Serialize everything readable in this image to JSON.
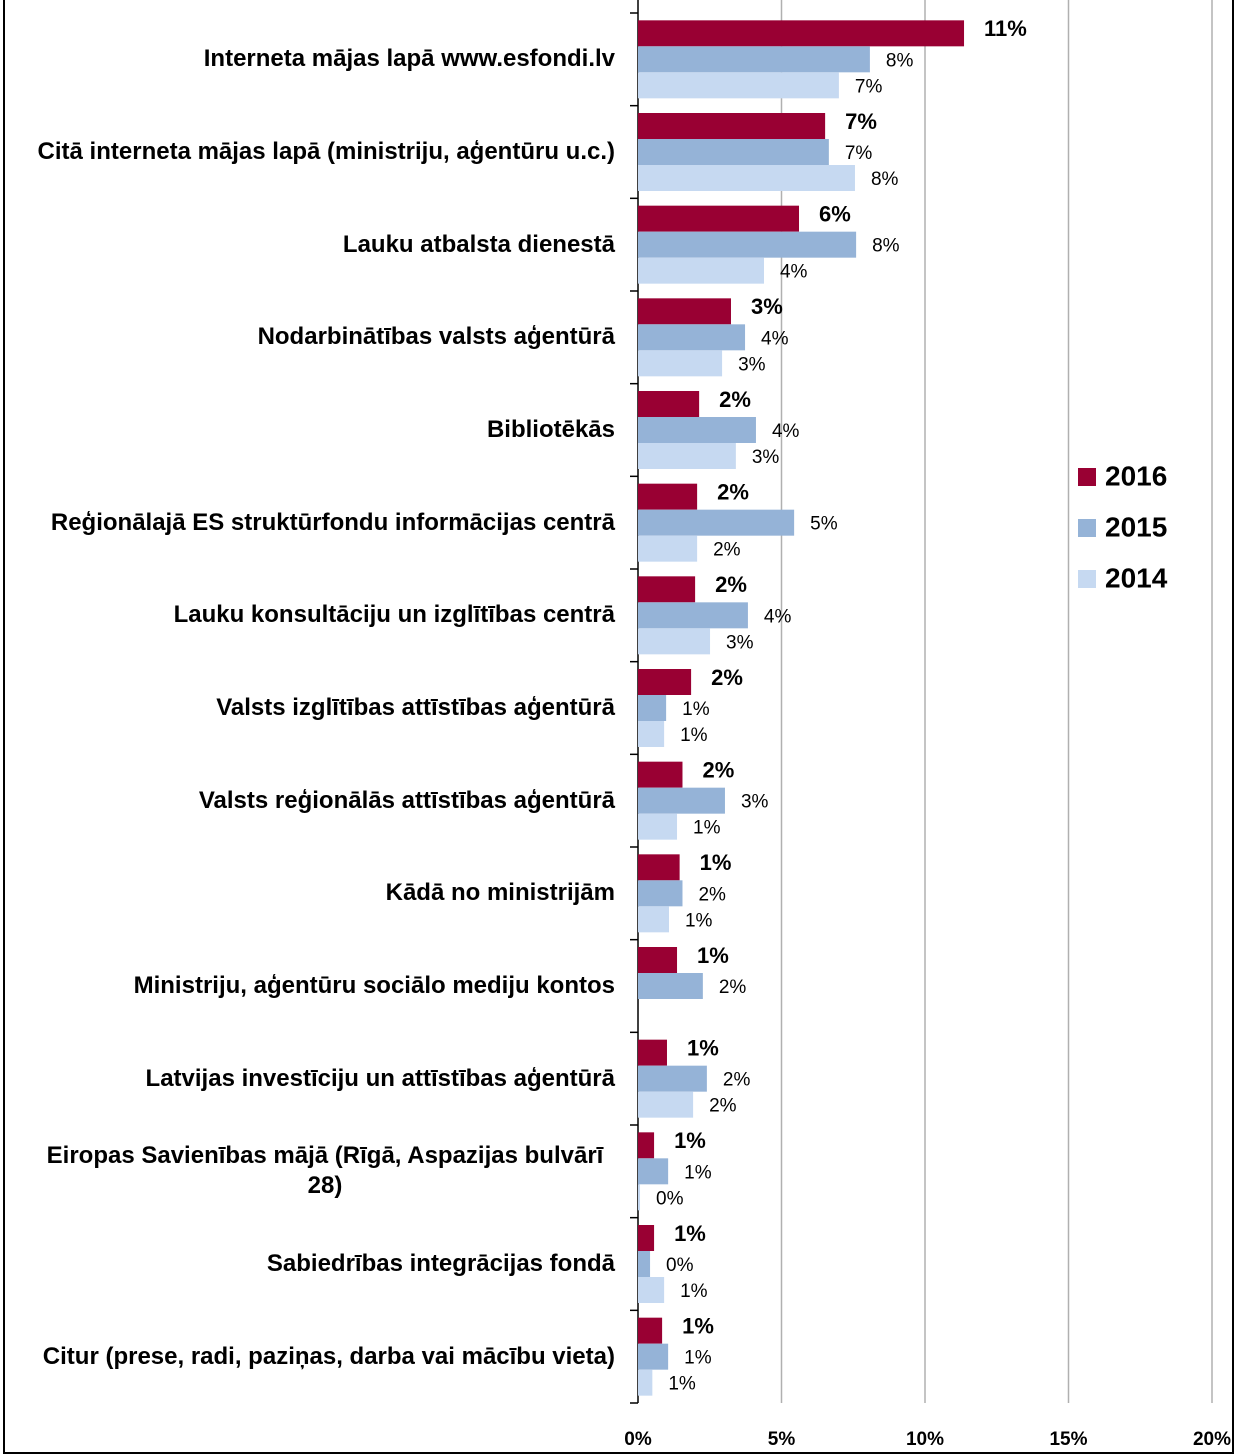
{
  "chart_data": {
    "type": "hbar",
    "categories": [
      "Interneta mājas lapā www.esfondi.lv",
      "Citā interneta mājas lapā (ministriju, aģentūru u.c.)",
      "Lauku atbalsta dienestā",
      "Nodarbinātības valsts aģentūrā",
      "Bibliotēkās",
      "Reģionālajā ES struktūrfondu informācijas centrā",
      "Lauku konsultāciju un izglītības centrā",
      "Valsts izglītības attīstības aģentūrā",
      "Valsts reģionālās attīstības aģentūrā",
      "Kādā no ministrijām",
      "Ministriju, aģentūru sociālo mediju kontos",
      "Latvijas investīciju un attīstības aģentūrā",
      "Eiropas Savienības mājā (Rīgā, Aspazijas bulvārī 28)",
      "Sabiedrības integrācijas fondā",
      "Citur (prese, radi, paziņas, darba vai mācību vieta)"
    ],
    "series": [
      {
        "name": "2016",
        "color": "#990033",
        "values": [
          11.36,
          6.52,
          5.61,
          3.24,
          2.13,
          2.06,
          1.99,
          1.85,
          1.55,
          1.45,
          1.36,
          1.01,
          0.56,
          0.56,
          0.84
        ],
        "value_labels": [
          "11%",
          "7%",
          "6%",
          "3%",
          "2%",
          "2%",
          "2%",
          "2%",
          "2%",
          "1%",
          "1%",
          "1%",
          "1%",
          "1%",
          "1%"
        ]
      },
      {
        "name": "2015",
        "color": "#95b3d7",
        "values": [
          8.08,
          6.65,
          7.6,
          3.73,
          4.11,
          5.44,
          3.83,
          0.98,
          3.03,
          1.55,
          2.26,
          2.4,
          1.05,
          0.42,
          1.05
        ],
        "value_labels": [
          "8%",
          "7%",
          "8%",
          "4%",
          "4%",
          "5%",
          "4%",
          "1%",
          "3%",
          "2%",
          "2%",
          "2%",
          "1%",
          "0%",
          "1%"
        ]
      },
      {
        "name": "2014",
        "color": "#c6d9f1",
        "values": [
          7.0,
          7.56,
          4.39,
          2.93,
          3.41,
          2.06,
          2.51,
          0.91,
          1.36,
          1.08,
          null,
          1.92,
          0.07,
          0.91,
          0.5
        ],
        "value_labels": [
          "7%",
          "8%",
          "4%",
          "3%",
          "3%",
          "2%",
          "3%",
          "1%",
          "1%",
          "1%",
          null,
          "2%",
          "0%",
          "1%",
          "1%"
        ]
      }
    ],
    "xlim": [
      0,
      20
    ],
    "xticks": [
      {
        "value": 0,
        "label": "0%"
      },
      {
        "value": 5,
        "label": "5%"
      },
      {
        "value": 10,
        "label": "10%"
      },
      {
        "value": 15,
        "label": "15%"
      },
      {
        "value": 20,
        "label": "20%"
      }
    ],
    "grid": true,
    "legend": "right"
  }
}
